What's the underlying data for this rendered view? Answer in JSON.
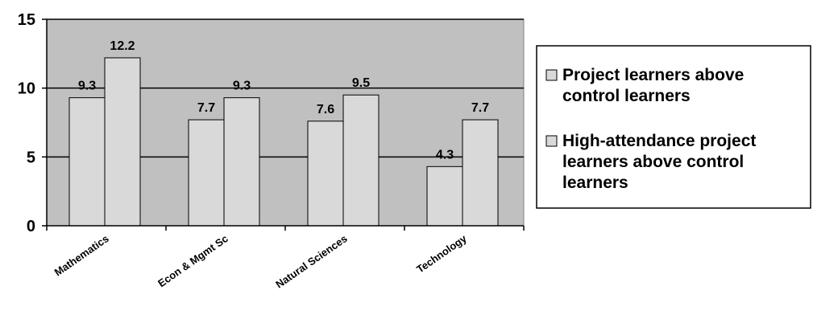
{
  "chart_data": {
    "type": "bar",
    "title": "",
    "xlabel": "",
    "ylabel": "",
    "categories": [
      "Mathematics",
      "Econ & Mgmt Sc",
      "Natural Sciences",
      "Technology"
    ],
    "series": [
      {
        "name": "Project learners above control learners",
        "legend_lines": [
          "Project learners above",
          "control learners"
        ],
        "values": [
          9.3,
          7.7,
          7.6,
          4.3
        ]
      },
      {
        "name": "High-attendance project learners above control learners",
        "legend_lines": [
          "High-attendance project",
          "learners above control",
          "learners"
        ],
        "values": [
          12.2,
          9.3,
          9.5,
          7.7
        ]
      }
    ],
    "ylim": [
      0,
      15
    ],
    "yticks": [
      0,
      5,
      10,
      15
    ],
    "grid": true,
    "legend_position": "right",
    "colors": {
      "plot_background": "#c0c0c0",
      "bar_fill": "#d9d9d9",
      "bar_stroke": "#000000",
      "grid": "#000000"
    }
  }
}
